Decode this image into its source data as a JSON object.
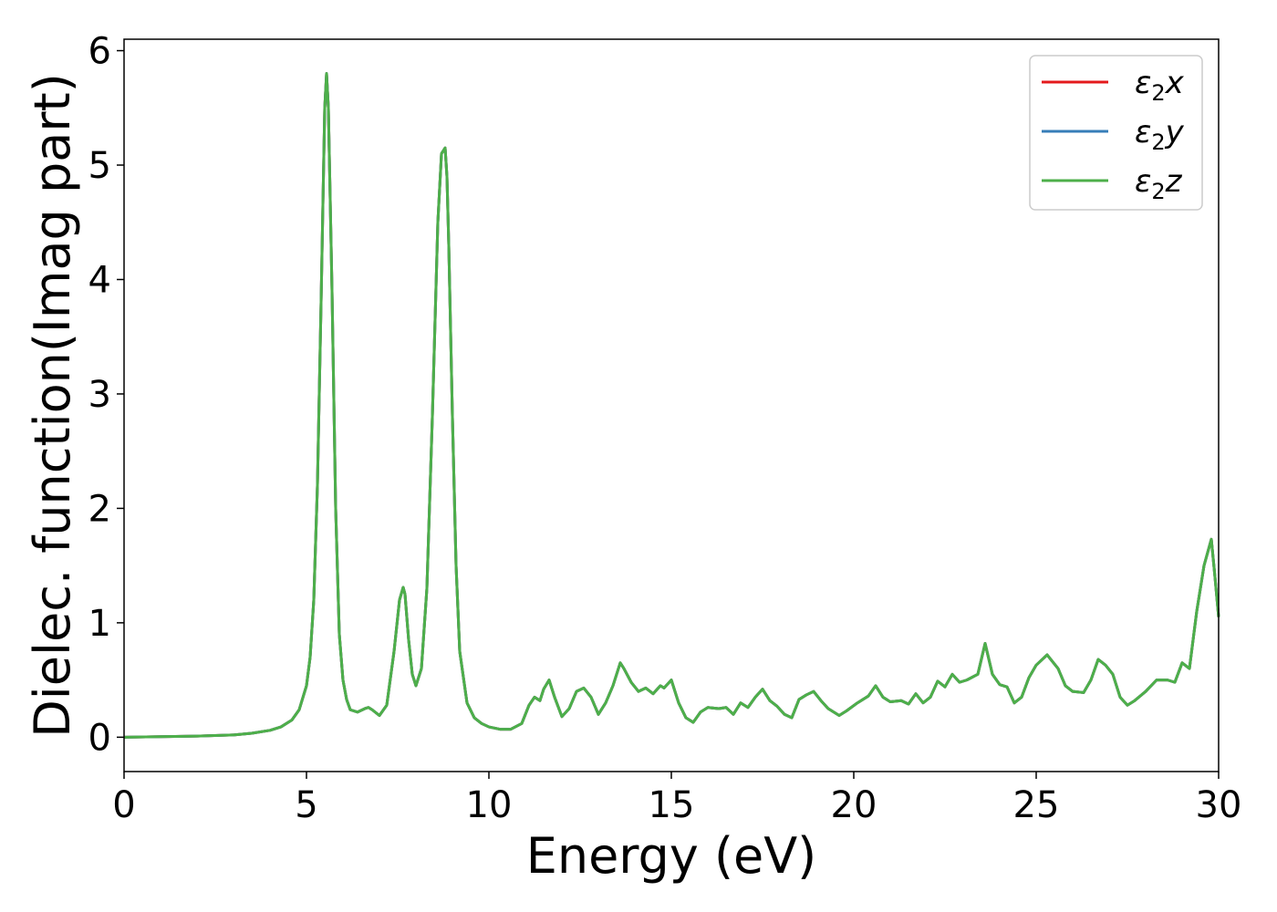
{
  "chart_data": {
    "type": "line",
    "title": "",
    "xlabel": "Energy (eV)",
    "ylabel": "Dielec. function(Imag part)",
    "xlim": [
      0,
      30
    ],
    "ylim": [
      -0.3,
      6.1
    ],
    "xticks": [
      0,
      5,
      10,
      15,
      20,
      25,
      30
    ],
    "yticks": [
      0,
      1,
      2,
      3,
      4,
      5,
      6
    ],
    "grid": false,
    "legend_position": "top-right",
    "series": [
      {
        "name": "ε2x",
        "name_base": "ε",
        "name_sub": "2",
        "name_suffix": "x",
        "color": "#e41a1c",
        "x": [
          0,
          1,
          2,
          3,
          3.5,
          4,
          4.3,
          4.6,
          4.8,
          5.0,
          5.1,
          5.2,
          5.3,
          5.4,
          5.5,
          5.55,
          5.6,
          5.7,
          5.8,
          5.9,
          6.0,
          6.1,
          6.2,
          6.4,
          6.6,
          6.7,
          6.8,
          7.0,
          7.2,
          7.4,
          7.55,
          7.65,
          7.7,
          7.8,
          7.9,
          8.0,
          8.15,
          8.3,
          8.45,
          8.6,
          8.7,
          8.8,
          8.85,
          8.9,
          9.0,
          9.1,
          9.2,
          9.4,
          9.6,
          9.8,
          10.0,
          10.3,
          10.6,
          10.9,
          11.1,
          11.25,
          11.4,
          11.5,
          11.65,
          11.8,
          12.0,
          12.2,
          12.4,
          12.6,
          12.8,
          13.0,
          13.2,
          13.4,
          13.6,
          13.7,
          13.9,
          14.1,
          14.3,
          14.5,
          14.7,
          14.8,
          15.0,
          15.2,
          15.4,
          15.6,
          15.8,
          16.0,
          16.3,
          16.5,
          16.7,
          16.9,
          17.1,
          17.3,
          17.5,
          17.7,
          17.9,
          18.1,
          18.3,
          18.5,
          18.7,
          18.9,
          19.1,
          19.3,
          19.6,
          19.8,
          20.1,
          20.4,
          20.6,
          20.8,
          21.0,
          21.3,
          21.5,
          21.7,
          21.9,
          22.1,
          22.3,
          22.5,
          22.7,
          22.9,
          23.1,
          23.4,
          23.6,
          23.8,
          24.0,
          24.2,
          24.4,
          24.6,
          24.8,
          25.0,
          25.3,
          25.6,
          25.8,
          26.0,
          26.3,
          26.5,
          26.7,
          26.9,
          27.1,
          27.3,
          27.5,
          27.7,
          28.0,
          28.3,
          28.6,
          28.8,
          29.0,
          29.2,
          29.4,
          29.6,
          29.8,
          29.9,
          30.0
        ],
        "y": [
          0.0,
          0.005,
          0.01,
          0.02,
          0.035,
          0.06,
          0.09,
          0.15,
          0.24,
          0.45,
          0.7,
          1.2,
          2.2,
          3.8,
          5.5,
          5.8,
          5.5,
          3.9,
          2.0,
          0.9,
          0.5,
          0.33,
          0.24,
          0.22,
          0.25,
          0.26,
          0.24,
          0.19,
          0.28,
          0.75,
          1.2,
          1.31,
          1.25,
          0.85,
          0.55,
          0.45,
          0.6,
          1.3,
          2.8,
          4.5,
          5.1,
          5.15,
          4.9,
          4.3,
          2.8,
          1.5,
          0.75,
          0.3,
          0.17,
          0.12,
          0.09,
          0.07,
          0.07,
          0.12,
          0.28,
          0.35,
          0.32,
          0.42,
          0.5,
          0.35,
          0.18,
          0.25,
          0.4,
          0.43,
          0.35,
          0.2,
          0.3,
          0.45,
          0.65,
          0.6,
          0.48,
          0.4,
          0.43,
          0.38,
          0.45,
          0.43,
          0.5,
          0.3,
          0.17,
          0.13,
          0.22,
          0.26,
          0.25,
          0.26,
          0.2,
          0.3,
          0.26,
          0.35,
          0.42,
          0.32,
          0.27,
          0.2,
          0.17,
          0.33,
          0.37,
          0.4,
          0.32,
          0.25,
          0.19,
          0.23,
          0.3,
          0.36,
          0.45,
          0.35,
          0.31,
          0.32,
          0.29,
          0.38,
          0.3,
          0.35,
          0.49,
          0.44,
          0.55,
          0.48,
          0.5,
          0.55,
          0.82,
          0.55,
          0.46,
          0.44,
          0.3,
          0.35,
          0.52,
          0.63,
          0.72,
          0.6,
          0.45,
          0.4,
          0.39,
          0.5,
          0.68,
          0.63,
          0.55,
          0.35,
          0.28,
          0.32,
          0.4,
          0.5,
          0.5,
          0.48,
          0.65,
          0.6,
          1.1,
          1.5,
          1.73,
          1.4,
          1.05
        ]
      },
      {
        "name": "ε2y",
        "name_base": "ε",
        "name_sub": "2",
        "name_suffix": "y",
        "color": "#377eb8",
        "x": [
          0,
          1,
          2,
          3,
          3.5,
          4,
          4.3,
          4.6,
          4.8,
          5.0,
          5.1,
          5.2,
          5.3,
          5.4,
          5.5,
          5.55,
          5.6,
          5.7,
          5.8,
          5.9,
          6.0,
          6.1,
          6.2,
          6.4,
          6.6,
          6.7,
          6.8,
          7.0,
          7.2,
          7.4,
          7.55,
          7.65,
          7.7,
          7.8,
          7.9,
          8.0,
          8.15,
          8.3,
          8.45,
          8.6,
          8.7,
          8.8,
          8.85,
          8.9,
          9.0,
          9.1,
          9.2,
          9.4,
          9.6,
          9.8,
          10.0,
          10.3,
          10.6,
          10.9,
          11.1,
          11.25,
          11.4,
          11.5,
          11.65,
          11.8,
          12.0,
          12.2,
          12.4,
          12.6,
          12.8,
          13.0,
          13.2,
          13.4,
          13.6,
          13.7,
          13.9,
          14.1,
          14.3,
          14.5,
          14.7,
          14.8,
          15.0,
          15.2,
          15.4,
          15.6,
          15.8,
          16.0,
          16.3,
          16.5,
          16.7,
          16.9,
          17.1,
          17.3,
          17.5,
          17.7,
          17.9,
          18.1,
          18.3,
          18.5,
          18.7,
          18.9,
          19.1,
          19.3,
          19.6,
          19.8,
          20.1,
          20.4,
          20.6,
          20.8,
          21.0,
          21.3,
          21.5,
          21.7,
          21.9,
          22.1,
          22.3,
          22.5,
          22.7,
          22.9,
          23.1,
          23.4,
          23.6,
          23.8,
          24.0,
          24.2,
          24.4,
          24.6,
          24.8,
          25.0,
          25.3,
          25.6,
          25.8,
          26.0,
          26.3,
          26.5,
          26.7,
          26.9,
          27.1,
          27.3,
          27.5,
          27.7,
          28.0,
          28.3,
          28.6,
          28.8,
          29.0,
          29.2,
          29.4,
          29.6,
          29.8,
          29.9,
          30.0
        ],
        "y": [
          0.0,
          0.005,
          0.01,
          0.02,
          0.035,
          0.06,
          0.09,
          0.15,
          0.24,
          0.45,
          0.7,
          1.2,
          2.2,
          3.8,
          5.5,
          5.8,
          5.5,
          3.9,
          2.0,
          0.9,
          0.5,
          0.33,
          0.24,
          0.22,
          0.25,
          0.26,
          0.24,
          0.19,
          0.28,
          0.75,
          1.2,
          1.31,
          1.25,
          0.85,
          0.55,
          0.45,
          0.6,
          1.3,
          2.8,
          4.5,
          5.1,
          5.15,
          4.9,
          4.3,
          2.8,
          1.5,
          0.75,
          0.3,
          0.17,
          0.12,
          0.09,
          0.07,
          0.07,
          0.12,
          0.28,
          0.35,
          0.32,
          0.42,
          0.5,
          0.35,
          0.18,
          0.25,
          0.4,
          0.43,
          0.35,
          0.2,
          0.3,
          0.45,
          0.65,
          0.6,
          0.48,
          0.4,
          0.43,
          0.38,
          0.45,
          0.43,
          0.5,
          0.3,
          0.17,
          0.13,
          0.22,
          0.26,
          0.25,
          0.26,
          0.2,
          0.3,
          0.26,
          0.35,
          0.42,
          0.32,
          0.27,
          0.2,
          0.17,
          0.33,
          0.37,
          0.4,
          0.32,
          0.25,
          0.19,
          0.23,
          0.3,
          0.36,
          0.45,
          0.35,
          0.31,
          0.32,
          0.29,
          0.38,
          0.3,
          0.35,
          0.49,
          0.44,
          0.55,
          0.48,
          0.5,
          0.55,
          0.82,
          0.55,
          0.46,
          0.44,
          0.3,
          0.35,
          0.52,
          0.63,
          0.72,
          0.6,
          0.45,
          0.4,
          0.39,
          0.5,
          0.68,
          0.63,
          0.55,
          0.35,
          0.28,
          0.32,
          0.4,
          0.5,
          0.5,
          0.48,
          0.65,
          0.6,
          1.1,
          1.5,
          1.73,
          1.4,
          1.05
        ]
      },
      {
        "name": "ε2z",
        "name_base": "ε",
        "name_sub": "2",
        "name_suffix": "z",
        "color": "#4daf4a",
        "x": [
          0,
          1,
          2,
          3,
          3.5,
          4,
          4.3,
          4.6,
          4.8,
          5.0,
          5.1,
          5.2,
          5.3,
          5.4,
          5.5,
          5.55,
          5.6,
          5.7,
          5.8,
          5.9,
          6.0,
          6.1,
          6.2,
          6.4,
          6.6,
          6.7,
          6.8,
          7.0,
          7.2,
          7.4,
          7.55,
          7.65,
          7.7,
          7.8,
          7.9,
          8.0,
          8.15,
          8.3,
          8.45,
          8.6,
          8.7,
          8.8,
          8.85,
          8.9,
          9.0,
          9.1,
          9.2,
          9.4,
          9.6,
          9.8,
          10.0,
          10.3,
          10.6,
          10.9,
          11.1,
          11.25,
          11.4,
          11.5,
          11.65,
          11.8,
          12.0,
          12.2,
          12.4,
          12.6,
          12.8,
          13.0,
          13.2,
          13.4,
          13.6,
          13.7,
          13.9,
          14.1,
          14.3,
          14.5,
          14.7,
          14.8,
          15.0,
          15.2,
          15.4,
          15.6,
          15.8,
          16.0,
          16.3,
          16.5,
          16.7,
          16.9,
          17.1,
          17.3,
          17.5,
          17.7,
          17.9,
          18.1,
          18.3,
          18.5,
          18.7,
          18.9,
          19.1,
          19.3,
          19.6,
          19.8,
          20.1,
          20.4,
          20.6,
          20.8,
          21.0,
          21.3,
          21.5,
          21.7,
          21.9,
          22.1,
          22.3,
          22.5,
          22.7,
          22.9,
          23.1,
          23.4,
          23.6,
          23.8,
          24.0,
          24.2,
          24.4,
          24.6,
          24.8,
          25.0,
          25.3,
          25.6,
          25.8,
          26.0,
          26.3,
          26.5,
          26.7,
          26.9,
          27.1,
          27.3,
          27.5,
          27.7,
          28.0,
          28.3,
          28.6,
          28.8,
          29.0,
          29.2,
          29.4,
          29.6,
          29.8,
          29.9,
          30.0
        ],
        "y": [
          0.0,
          0.005,
          0.01,
          0.02,
          0.035,
          0.06,
          0.09,
          0.15,
          0.24,
          0.45,
          0.7,
          1.2,
          2.2,
          3.8,
          5.5,
          5.8,
          5.5,
          3.9,
          2.0,
          0.9,
          0.5,
          0.33,
          0.24,
          0.22,
          0.25,
          0.26,
          0.24,
          0.19,
          0.28,
          0.75,
          1.2,
          1.31,
          1.25,
          0.85,
          0.55,
          0.45,
          0.6,
          1.3,
          2.8,
          4.5,
          5.1,
          5.15,
          4.9,
          4.3,
          2.8,
          1.5,
          0.75,
          0.3,
          0.17,
          0.12,
          0.09,
          0.07,
          0.07,
          0.12,
          0.28,
          0.35,
          0.32,
          0.42,
          0.5,
          0.35,
          0.18,
          0.25,
          0.4,
          0.43,
          0.35,
          0.2,
          0.3,
          0.45,
          0.65,
          0.6,
          0.48,
          0.4,
          0.43,
          0.38,
          0.45,
          0.43,
          0.5,
          0.3,
          0.17,
          0.13,
          0.22,
          0.26,
          0.25,
          0.26,
          0.2,
          0.3,
          0.26,
          0.35,
          0.42,
          0.32,
          0.27,
          0.2,
          0.17,
          0.33,
          0.37,
          0.4,
          0.32,
          0.25,
          0.19,
          0.23,
          0.3,
          0.36,
          0.45,
          0.35,
          0.31,
          0.32,
          0.29,
          0.38,
          0.3,
          0.35,
          0.49,
          0.44,
          0.55,
          0.48,
          0.5,
          0.55,
          0.82,
          0.55,
          0.46,
          0.44,
          0.3,
          0.35,
          0.52,
          0.63,
          0.72,
          0.6,
          0.45,
          0.4,
          0.39,
          0.5,
          0.68,
          0.63,
          0.55,
          0.35,
          0.28,
          0.32,
          0.4,
          0.5,
          0.5,
          0.48,
          0.65,
          0.6,
          1.1,
          1.5,
          1.73,
          1.4,
          1.05
        ]
      }
    ]
  }
}
